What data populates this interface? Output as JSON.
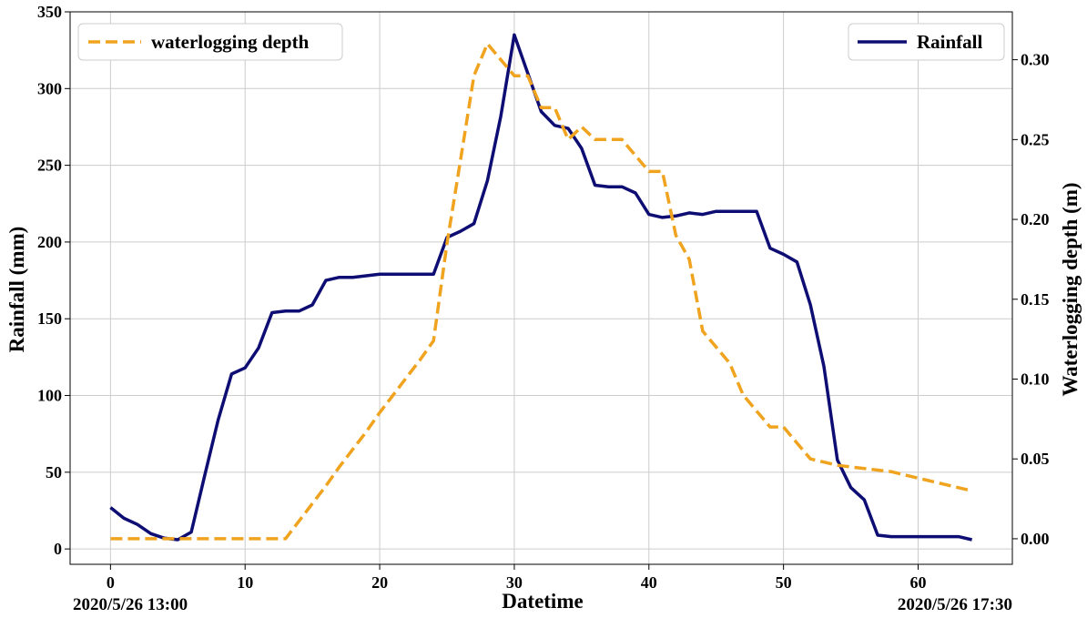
{
  "colors": {
    "rainfall": "#0d0d73",
    "waterlogging": "#f0a31e",
    "grid": "#cccccc",
    "axis": "#000000"
  },
  "chart_data": {
    "type": "line",
    "xlabel": "Datetime",
    "ylabel_left": "Rainfall (mm)",
    "ylabel_right": "Waterlogging depth (m)",
    "start_label": "2020/5/26 13:00",
    "end_label": "2020/5/26 17:30",
    "xlim": [
      -3,
      67
    ],
    "ylim_left": [
      -10,
      350
    ],
    "ylim_right": [
      -0.016,
      0.33
    ],
    "x_ticks": [
      0,
      10,
      20,
      30,
      40,
      50,
      60
    ],
    "x_tick_labels": [
      "0",
      "10",
      "20",
      "30",
      "40",
      "50",
      "60"
    ],
    "y_left_ticks": [
      0,
      50,
      100,
      150,
      200,
      250,
      300,
      350
    ],
    "y_left_tick_labels": [
      "0",
      "50",
      "100",
      "150",
      "200",
      "250",
      "300",
      "350"
    ],
    "y_right_ticks": [
      0,
      0.05,
      0.1,
      0.15,
      0.2,
      0.25,
      0.3
    ],
    "y_right_tick_labels": [
      "0.00",
      "0.05",
      "0.10",
      "0.15",
      "0.20",
      "0.25",
      "0.30"
    ],
    "grid": true,
    "legend": [
      {
        "name": "waterlogging depth",
        "placement": "top-left",
        "style": "dashed"
      },
      {
        "name": "Rainfall",
        "placement": "top-right",
        "style": "solid"
      }
    ],
    "series": [
      {
        "name": "Rainfall",
        "axis": "left",
        "x": [
          0,
          1,
          2,
          3,
          4,
          5,
          6,
          7,
          8,
          9,
          10,
          11,
          12,
          13,
          14,
          15,
          16,
          17,
          18,
          19,
          20,
          21,
          22,
          23,
          24,
          25,
          26,
          27,
          28,
          29,
          30,
          31,
          32,
          33,
          34,
          35,
          36,
          37,
          38,
          39,
          40,
          41,
          42,
          43,
          44,
          45,
          46,
          47,
          48,
          49,
          50,
          51,
          52,
          53,
          54,
          55,
          56,
          57,
          58,
          59,
          60,
          61,
          62,
          63,
          64
        ],
        "y": [
          27,
          20,
          16,
          10,
          7,
          6,
          11,
          48,
          84,
          114,
          118,
          131,
          154,
          155,
          155,
          159,
          175,
          177,
          177,
          178,
          179,
          179,
          179,
          179,
          179,
          203,
          207,
          212,
          240,
          282,
          335,
          310,
          285,
          276,
          274,
          261,
          237,
          236,
          236,
          232,
          218,
          216,
          217,
          219,
          218,
          220,
          220,
          220,
          220,
          196,
          192,
          187,
          159,
          119,
          58,
          40,
          32,
          9,
          8,
          8,
          8,
          8,
          8,
          8,
          6
        ]
      },
      {
        "name": "waterlogging depth",
        "axis": "right",
        "x": [
          0,
          1,
          2,
          3,
          4,
          5,
          6,
          7,
          8,
          9,
          10,
          11,
          12,
          13,
          14,
          15,
          16,
          17,
          18,
          19,
          20,
          21,
          22,
          23,
          24,
          25,
          26,
          27,
          28,
          29,
          30,
          31,
          32,
          33,
          34,
          35,
          36,
          37,
          38,
          39,
          40,
          41,
          42,
          43,
          44,
          45,
          46,
          47,
          48,
          49,
          50,
          51,
          52,
          53,
          54,
          55,
          56,
          57,
          58,
          59,
          60,
          61,
          62,
          63,
          64
        ],
        "y": [
          0,
          0,
          0,
          0,
          0,
          0,
          0,
          0,
          0,
          0,
          0,
          0,
          0,
          0,
          0.011,
          0.022,
          0.033,
          0.045,
          0.056,
          0.067,
          0.079,
          0.09,
          0.101,
          0.112,
          0.124,
          0.185,
          0.237,
          0.29,
          0.31,
          0.3,
          0.29,
          0.29,
          0.27,
          0.27,
          0.25,
          0.258,
          0.25,
          0.25,
          0.25,
          0.24,
          0.23,
          0.23,
          0.19,
          0.175,
          0.13,
          0.12,
          0.11,
          0.09,
          0.08,
          0.07,
          0.07,
          0.06,
          0.05,
          0.048,
          0.046,
          0.045,
          0.044,
          0.043,
          0.042,
          0.04,
          0.038,
          0.036,
          0.034,
          0.032,
          0.03
        ]
      }
    ]
  }
}
